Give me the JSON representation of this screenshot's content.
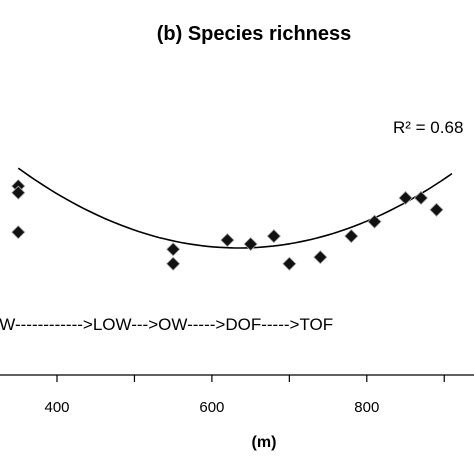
{
  "chart_data": {
    "type": "scatter",
    "title": "(b) Species richness",
    "xlabel": "(m)",
    "ylabel": "",
    "xlim": [
      330,
      910
    ],
    "ylim": [
      0,
      10
    ],
    "x_ticks": [
      400,
      600,
      800
    ],
    "x_tick_labels": [
      "400",
      "600",
      "800"
    ],
    "annotation": "OW------------>LOW--->OW----->DOF----->TOF",
    "trend_label": "R² = 0.68",
    "grid": false,
    "series": [
      {
        "points": [
          {
            "x": 350,
            "y": 8.0
          },
          {
            "x": 350,
            "y": 7.5
          },
          {
            "x": 350,
            "y": 4.5
          },
          {
            "x": 550,
            "y": 3.2
          },
          {
            "x": 550,
            "y": 2.1
          },
          {
            "x": 620,
            "y": 3.9
          },
          {
            "x": 650,
            "y": 3.6
          },
          {
            "x": 680,
            "y": 4.2
          },
          {
            "x": 700,
            "y": 2.1
          },
          {
            "x": 740,
            "y": 2.6
          },
          {
            "x": 780,
            "y": 4.2
          },
          {
            "x": 810,
            "y": 5.3
          },
          {
            "x": 850,
            "y": 7.1
          },
          {
            "x": 870,
            "y": 7.1
          },
          {
            "x": 890,
            "y": 6.2
          }
        ]
      }
    ],
    "trendline": {
      "type": "quadratic",
      "a": 7.47e-05,
      "b": -0.09486,
      "c": 33.415,
      "x_range": [
        350,
        910
      ]
    }
  }
}
